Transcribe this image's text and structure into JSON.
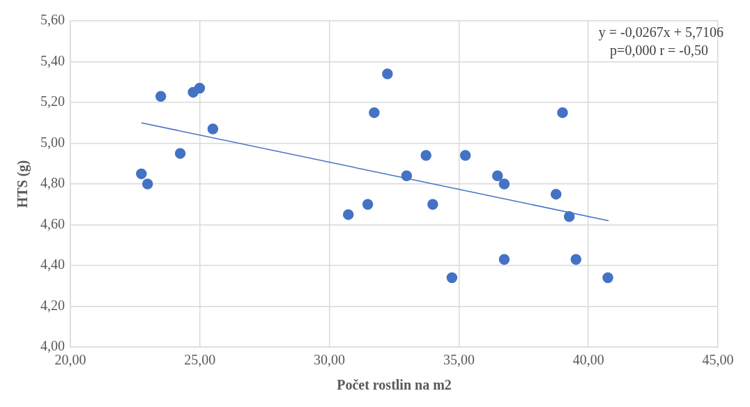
{
  "chart_data": {
    "type": "scatter",
    "xlabel": "Počet rostlin na m2",
    "ylabel": "HTS (g)",
    "annotations": [
      "y = -0,0267x + 5,7106",
      "p=0,000 r = -0,50"
    ],
    "xlim": [
      20,
      45
    ],
    "xticks": [
      {
        "value": 20,
        "label": "20,00"
      },
      {
        "value": 25,
        "label": "25,00"
      },
      {
        "value": 30,
        "label": "30,00"
      },
      {
        "value": 35,
        "label": "35,00"
      },
      {
        "value": 40,
        "label": "40,00"
      },
      {
        "value": 45,
        "label": "45,00"
      }
    ],
    "ylim": [
      4,
      5.6
    ],
    "yticks": [
      {
        "value": 4,
        "label": "4,00"
      },
      {
        "value": 4.2,
        "label": "4,20"
      },
      {
        "value": 4.4,
        "label": "4,40"
      },
      {
        "value": 4.6,
        "label": "4,60"
      },
      {
        "value": 4.8,
        "label": "4,80"
      },
      {
        "value": 5,
        "label": "5,00"
      },
      {
        "value": 5.2,
        "label": "5,20"
      },
      {
        "value": 5.4,
        "label": "5,40"
      },
      {
        "value": 5.6,
        "label": "5,60"
      }
    ],
    "grid": true,
    "legend": false,
    "marker": "circle",
    "series": [
      {
        "color": "#4472c4",
        "x": [
          22.74,
          22.98,
          23.49,
          24.24,
          24.74,
          24.99,
          25.5,
          30.73,
          31.48,
          31.73,
          32.24,
          32.98,
          33.73,
          33.99,
          34.73,
          35.25,
          36.49,
          36.75,
          36.75,
          38.75,
          39.0,
          39.26,
          39.52,
          40.75
        ],
        "values": [
          4.85,
          4.8,
          5.23,
          4.95,
          5.25,
          5.27,
          5.07,
          4.65,
          4.7,
          5.15,
          5.34,
          4.84,
          4.94,
          4.7,
          4.34,
          4.94,
          4.84,
          4.8,
          4.43,
          4.75,
          5.15,
          4.64,
          4.43,
          4.34
        ]
      },
      {
        "type": "line",
        "color": "#4472c4",
        "marker": "none",
        "line_style": "solid",
        "x": [
          22.74,
          40.78
        ],
        "values": [
          5.1,
          4.62
        ]
      }
    ]
  }
}
